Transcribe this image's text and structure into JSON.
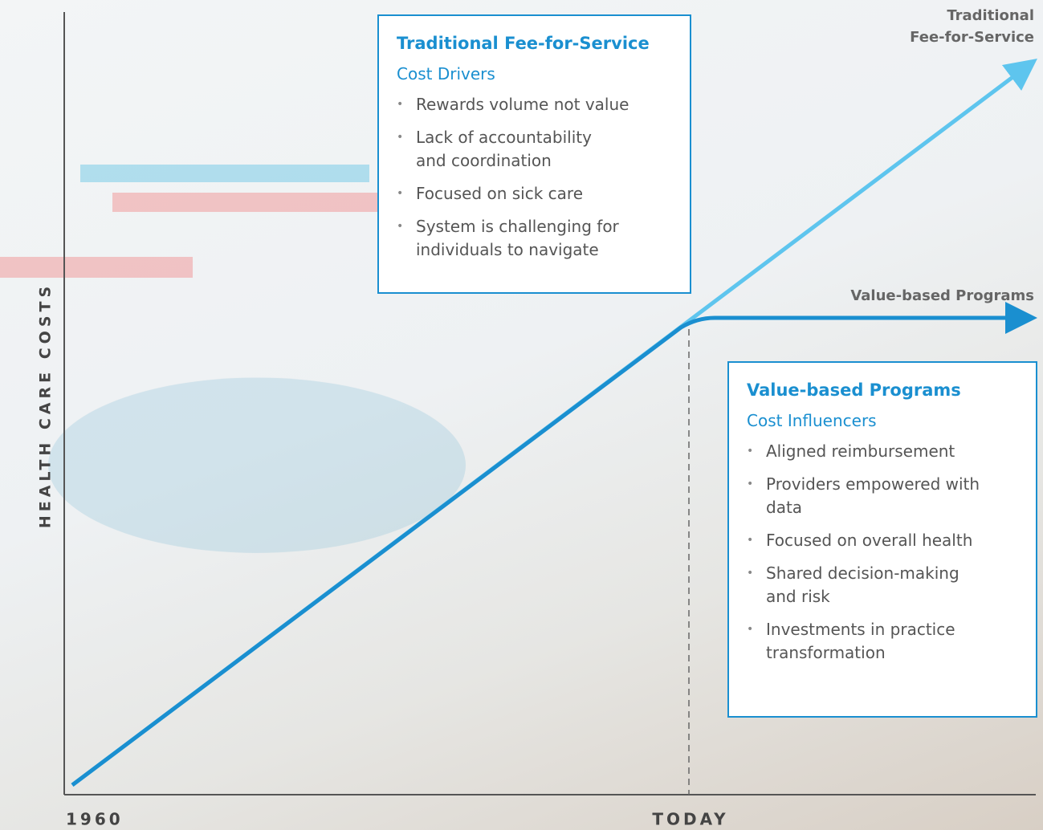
{
  "axis": {
    "y_label": "HEALTH CARE COSTS",
    "x_start": "1960",
    "x_end": "TODAY"
  },
  "lines": [
    {
      "label_lines": [
        "Traditional",
        "Fee-for-Service"
      ]
    },
    {
      "label_lines": [
        "Value-based Programs"
      ]
    }
  ],
  "boxes": [
    {
      "title": "Traditional Fee-for-Service",
      "subtitle": "Cost Drivers",
      "items": [
        [
          "Rewards volume not value"
        ],
        [
          "Lack of accountability",
          "and coordination"
        ],
        [
          "Focused on sick care"
        ],
        [
          "System is challenging for",
          "individuals to navigate"
        ]
      ]
    },
    {
      "title": "Value-based Programs",
      "subtitle": "Cost Influencers",
      "items": [
        [
          "Aligned reimbursement"
        ],
        [
          "Providers empowered with",
          "data"
        ],
        [
          "Focused on overall health"
        ],
        [
          "Shared decision-making",
          "and risk"
        ],
        [
          "Investments in practice",
          "transformation"
        ]
      ]
    }
  ]
}
